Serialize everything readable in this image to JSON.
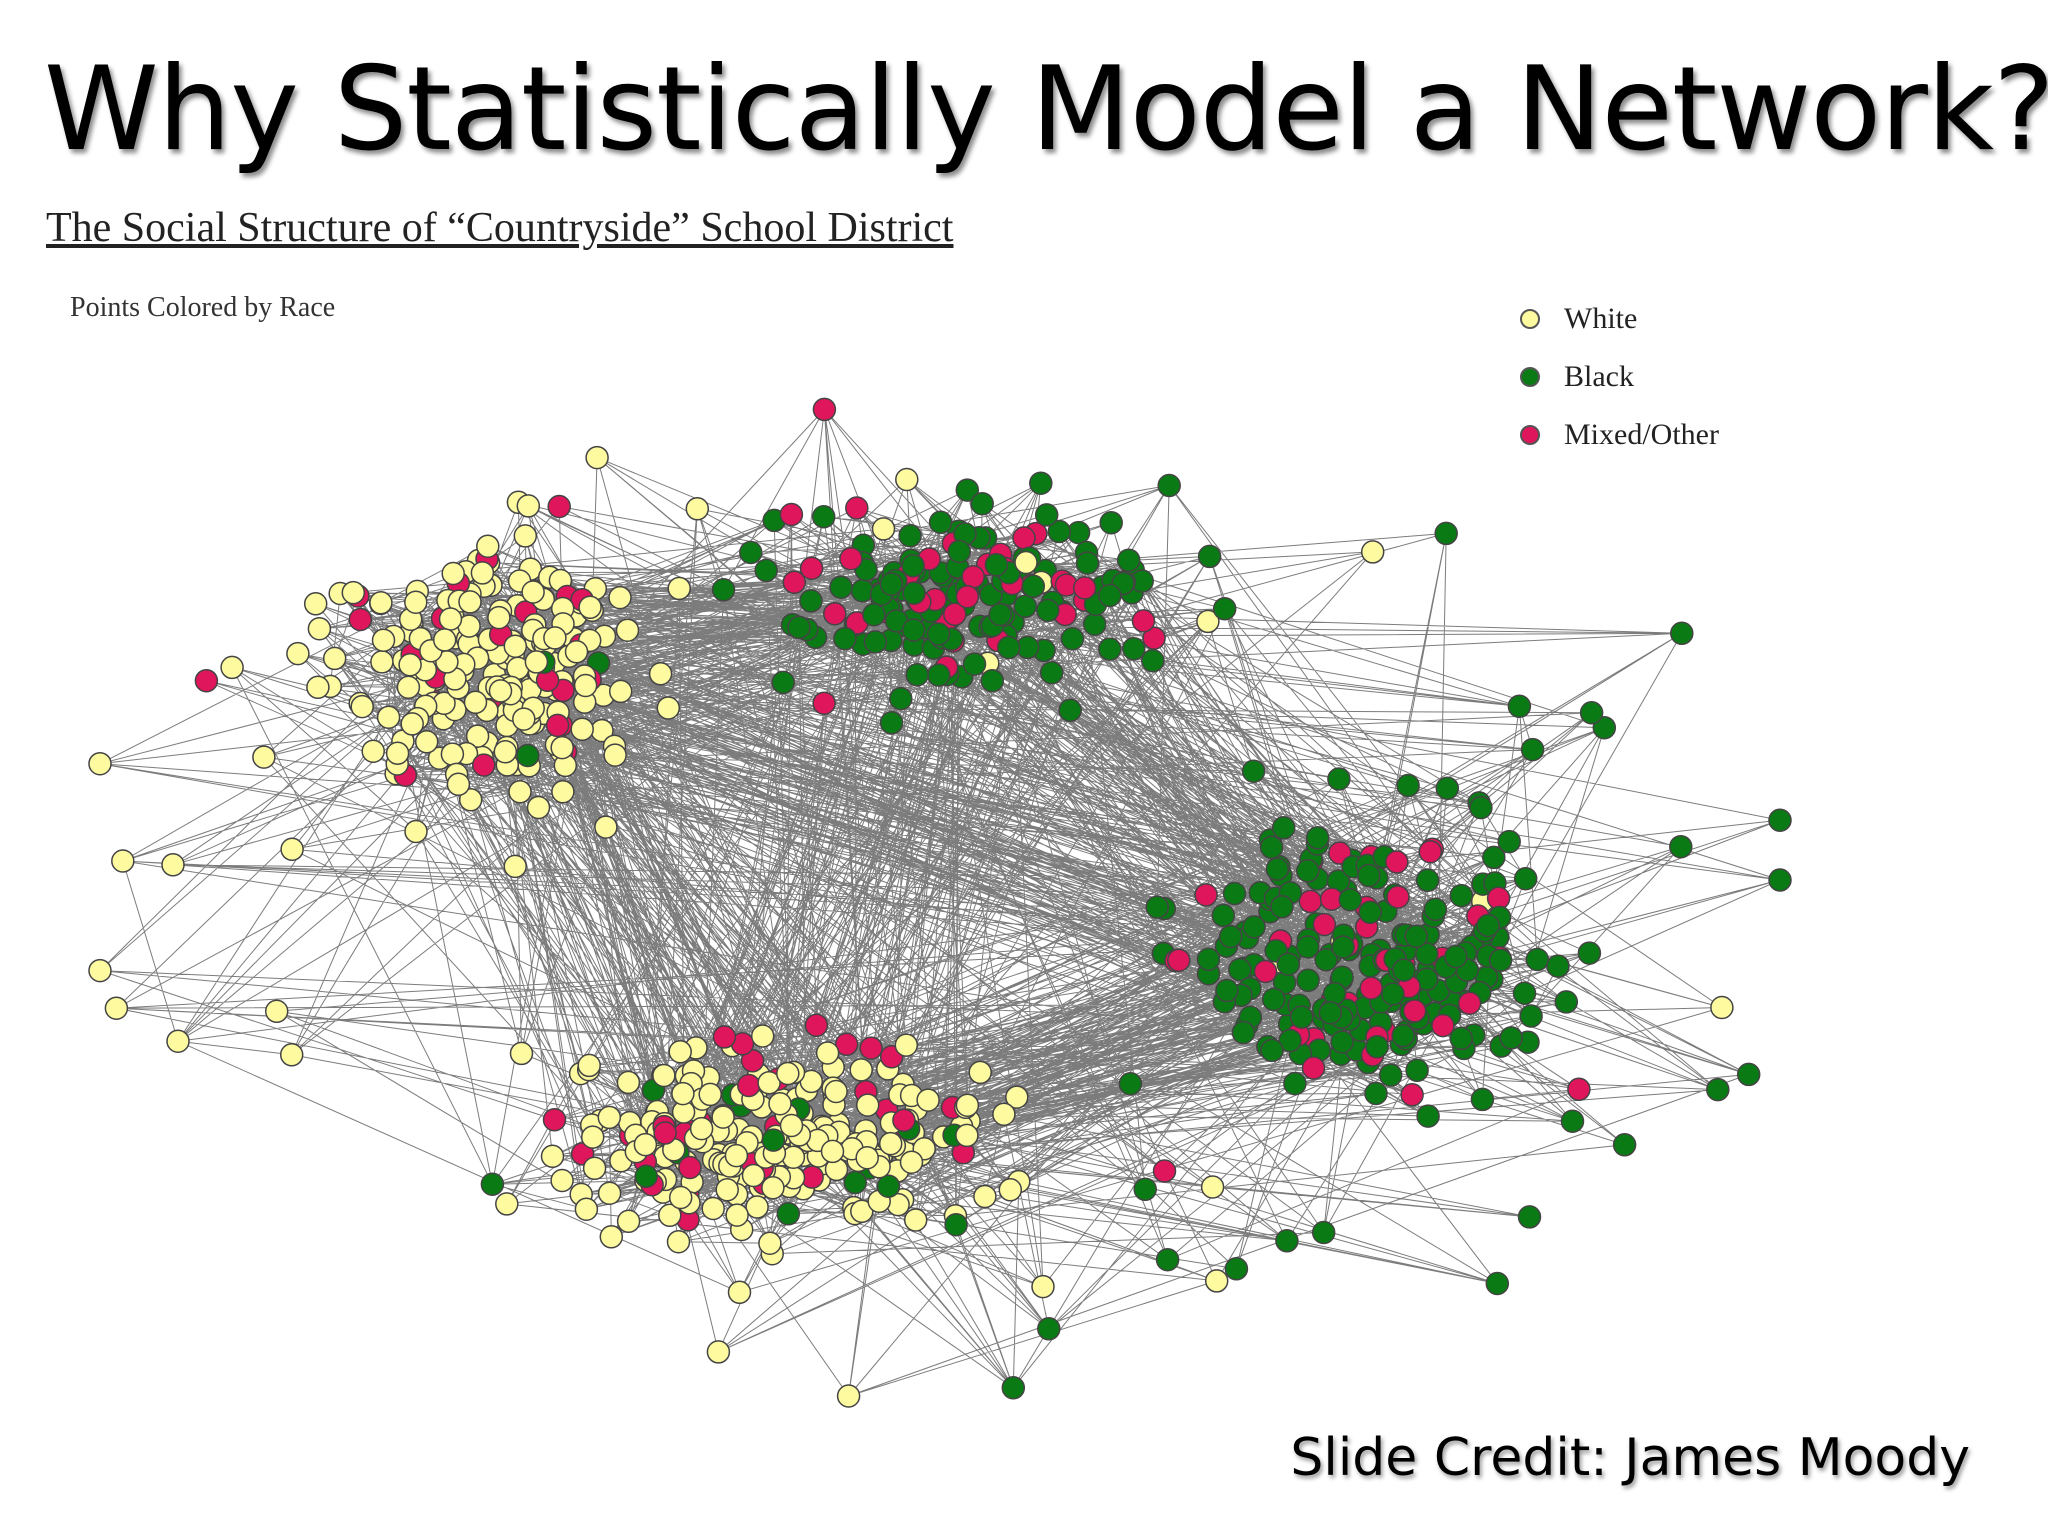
{
  "slide": {
    "title": "Why Statistically Model a Network?",
    "credit": "Slide Credit: James Moody"
  },
  "figure": {
    "title": "The Social Structure of “Countryside” School District",
    "subtitle": "Points Colored by Race",
    "legend": [
      {
        "label": "White",
        "color": "#fdfaa0"
      },
      {
        "label": "Black",
        "color": "#0a7a14"
      },
      {
        "label": "Mixed/Other",
        "color": "#e0165c"
      }
    ]
  },
  "colors": {
    "white_node": "#fdfaa0",
    "black_node": "#0a7a14",
    "mixed_node": "#e0165c",
    "edge": "#111111",
    "node_outline": "#444444"
  }
}
